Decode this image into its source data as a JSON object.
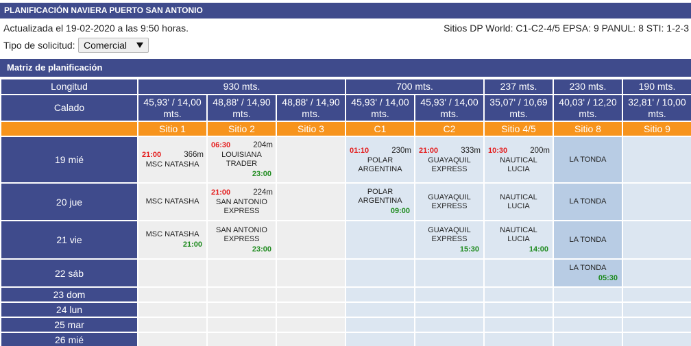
{
  "title": "PLANIFICACIÓN NAVIERA PUERTO SAN ANTONIO",
  "updated": "Actualizada el 19-02-2020 a las 9:50 horas.",
  "sites_info": "Sitios DP World: C1-C2-4/5 EPSA: 9 PANUL: 8 STI: 1-2-3",
  "request_type": {
    "label": "Tipo de solicitud:",
    "selected": "Comercial",
    "icon": "caret-down-icon"
  },
  "matrix": {
    "title": "Matriz de planificación",
    "length_label": "Longitud",
    "lengths": [
      "930 mts.",
      "700 mts.",
      "237 mts.",
      "230 mts.",
      "190 mts."
    ],
    "draft_label": "Calado",
    "drafts": [
      "45,93' / 14,00 mts.",
      "48,88' / 14,90 mts.",
      "48,88' / 14,90 mts.",
      "45,93' / 14,00 mts.",
      "45,93' / 14,00 mts.",
      "35,07' / 10,69 mts.",
      "40,03' / 12,20 mts.",
      "32,81' / 10,00 mts."
    ],
    "sites": [
      "Sitio 1",
      "Sitio 2",
      "Sitio 3",
      "C1",
      "C2",
      "Sitio 4/5",
      "Sitio 8",
      "Sitio 9"
    ],
    "days": [
      {
        "label": "19 mié",
        "cells": [
          {
            "arrival": "21:00",
            "length": "366m",
            "name": "MSC NATASHA"
          },
          {
            "arrival": "06:30",
            "length": "204m",
            "name": "LOUISIANA TRADER",
            "departure": "23:00"
          },
          {},
          {
            "arrival": "01:10",
            "length": "230m",
            "name": "POLAR ARGENTINA"
          },
          {
            "arrival": "21:00",
            "length": "333m",
            "name": "GUAYAQUIL EXPRESS"
          },
          {
            "arrival": "10:30",
            "length": "200m",
            "name": "NAUTICAL LUCIA"
          },
          {
            "name": "LA TONDA"
          },
          {}
        ]
      },
      {
        "label": "20 jue",
        "cells": [
          {
            "name": "MSC NATASHA"
          },
          {
            "arrival": "21:00",
            "length": "224m",
            "name": "SAN ANTONIO EXPRESS"
          },
          {},
          {
            "name": "POLAR ARGENTINA",
            "departure": "09:00"
          },
          {
            "name": "GUAYAQUIL EXPRESS"
          },
          {
            "name": "NAUTICAL LUCIA"
          },
          {
            "name": "LA TONDA"
          },
          {}
        ]
      },
      {
        "label": "21 vie",
        "cells": [
          {
            "name": "MSC NATASHA",
            "departure": "21:00"
          },
          {
            "name": "SAN ANTONIO EXPRESS",
            "departure": "23:00"
          },
          {},
          {},
          {
            "name": "GUAYAQUIL EXPRESS",
            "departure": "15:30"
          },
          {
            "name": "NAUTICAL LUCIA",
            "departure": "14:00"
          },
          {
            "name": "LA TONDA"
          },
          {}
        ]
      },
      {
        "label": "22 sáb",
        "cells": [
          {},
          {},
          {},
          {},
          {},
          {},
          {
            "name": "LA TONDA",
            "departure": "05:30"
          },
          {}
        ]
      },
      {
        "label": "23 dom",
        "cells": []
      },
      {
        "label": "24 lun",
        "cells": []
      },
      {
        "label": "25 mar",
        "cells": []
      },
      {
        "label": "26 mié",
        "cells": []
      }
    ]
  },
  "colors": {
    "header_bg": "#3f4b8c",
    "site_row_bg": "#f7941d",
    "cell_gray": "#eeeeee",
    "cell_blue": "#dce6f1",
    "cell_highlight": "#b8cce4",
    "arrival_time": "#e41b1b",
    "departure_time": "#1d8a1d"
  }
}
